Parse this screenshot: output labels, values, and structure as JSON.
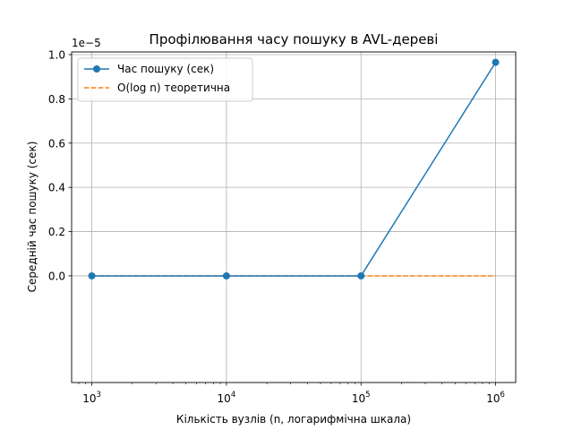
{
  "chart_data": {
    "type": "line",
    "title": "Профілювання часу пошуку в AVL-дереві",
    "xlabel": "Кількість вузлів (n, логарифмічна шкала)",
    "ylabel": "Середній час пошуку (сек)",
    "xscale": "log",
    "xlim": [
      708,
      1410000
    ],
    "ylim": [
      -0.482,
      1.012
    ],
    "y_offset_label": "1e−5",
    "x_ticks": [
      {
        "value": 1000,
        "base": "10",
        "exp": "3"
      },
      {
        "value": 10000,
        "base": "10",
        "exp": "4"
      },
      {
        "value": 100000,
        "base": "10",
        "exp": "5"
      },
      {
        "value": 1000000,
        "base": "10",
        "exp": "6"
      }
    ],
    "y_ticks": [
      {
        "value": 0.0,
        "label": "0.0"
      },
      {
        "value": 0.2,
        "label": "0.2"
      },
      {
        "value": 0.4,
        "label": "0.4"
      },
      {
        "value": 0.6,
        "label": "0.6"
      },
      {
        "value": 0.8,
        "label": "0.8"
      },
      {
        "value": 1.0,
        "label": "1.0"
      }
    ],
    "grid": true,
    "legend_position": "top-left",
    "series": [
      {
        "name": "Час пошуку (сек)",
        "color": "#1f77b4",
        "style": "solid",
        "marker": "circle",
        "x": [
          1000,
          10000,
          100000,
          1000000
        ],
        "y": [
          0.0,
          0.0,
          0.0,
          0.965
        ]
      },
      {
        "name": "O(log n) теоретична",
        "color": "#ff7f0e",
        "style": "dashed",
        "marker": "none",
        "x": [
          1000,
          10000,
          100000,
          1000000
        ],
        "y": [
          0.0,
          0.0,
          0.0,
          0.0
        ]
      }
    ]
  }
}
